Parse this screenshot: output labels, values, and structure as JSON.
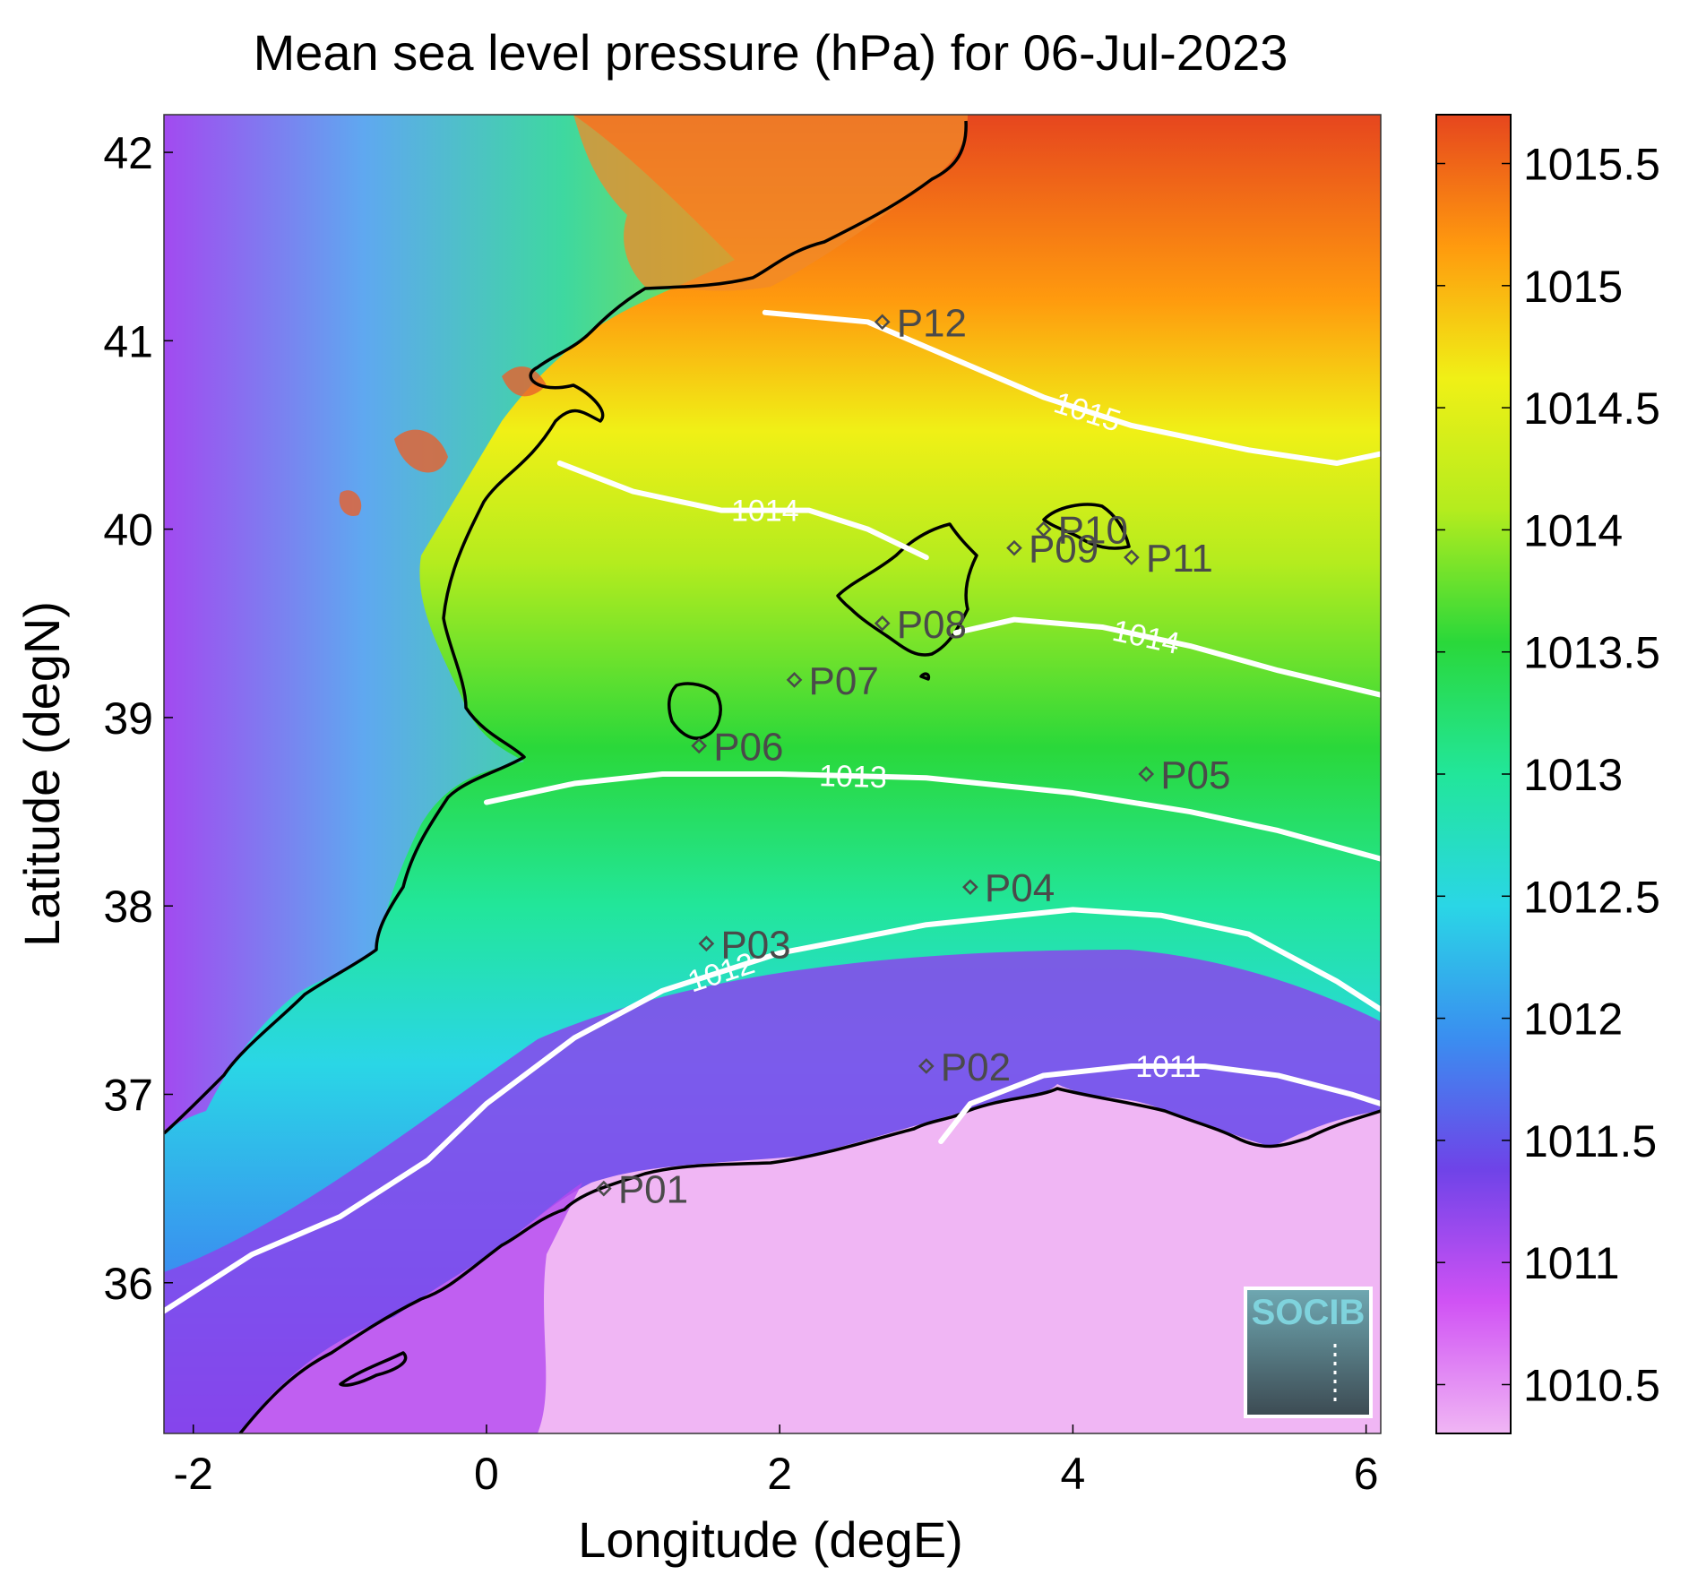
{
  "chart_data": {
    "type": "heatmap",
    "title": "Mean sea level pressure (hPa) for 06-Jul-2023",
    "xlabel": "Longitude (degE)",
    "ylabel": "Latitude (degN)",
    "xlim": [
      -2.2,
      6.1
    ],
    "ylim": [
      35.2,
      42.2
    ],
    "x_ticks": [
      -2,
      0,
      2,
      4,
      6
    ],
    "y_ticks": [
      36,
      37,
      38,
      39,
      40,
      41,
      42
    ],
    "colorbar": {
      "range": [
        1010.3,
        1015.7
      ],
      "ticks": [
        1010.5,
        1011,
        1011.5,
        1012,
        1012.5,
        1013,
        1013.5,
        1014,
        1014.5,
        1015,
        1015.5
      ],
      "colors": [
        "#f0b6f4",
        "#d052f4",
        "#6f43e8",
        "#3a8ef0",
        "#2ad6e6",
        "#22e69a",
        "#2ad83a",
        "#b4ec1e",
        "#f0f016",
        "#ff9a0e",
        "#e6461e"
      ]
    },
    "contours": [
      {
        "level": "1011",
        "label": "1011",
        "points": [
          [
            3.1,
            36.75
          ],
          [
            3.3,
            36.95
          ],
          [
            3.8,
            37.1
          ],
          [
            4.4,
            37.15
          ],
          [
            4.9,
            37.15
          ],
          [
            5.4,
            37.1
          ],
          [
            5.9,
            37.0
          ],
          [
            6.1,
            36.95
          ]
        ]
      },
      {
        "level": "1012",
        "label": "1012",
        "points": [
          [
            -2.2,
            35.85
          ],
          [
            -1.6,
            36.15
          ],
          [
            -1.0,
            36.35
          ],
          [
            -0.4,
            36.65
          ],
          [
            0.0,
            36.95
          ],
          [
            0.6,
            37.3
          ],
          [
            1.2,
            37.55
          ],
          [
            2.0,
            37.75
          ],
          [
            3.0,
            37.9
          ],
          [
            4.0,
            37.98
          ],
          [
            4.6,
            37.95
          ],
          [
            5.2,
            37.85
          ],
          [
            5.8,
            37.6
          ],
          [
            6.1,
            37.45
          ]
        ]
      },
      {
        "level": "1013",
        "label": "1013",
        "points": [
          [
            0.0,
            38.55
          ],
          [
            0.6,
            38.65
          ],
          [
            1.2,
            38.7
          ],
          [
            2.0,
            38.7
          ],
          [
            3.0,
            38.68
          ],
          [
            4.0,
            38.6
          ],
          [
            4.8,
            38.5
          ],
          [
            5.4,
            38.4
          ],
          [
            6.1,
            38.25
          ]
        ]
      },
      {
        "level": "1014",
        "label": "1014",
        "points": [
          [
            0.5,
            40.35
          ],
          [
            1.0,
            40.2
          ],
          [
            1.6,
            40.1
          ],
          [
            2.2,
            40.1
          ],
          [
            2.6,
            40.0
          ],
          [
            3.0,
            39.85
          ]
        ]
      },
      {
        "level": "1014",
        "label": "1014",
        "points": [
          [
            3.2,
            39.45
          ],
          [
            3.6,
            39.52
          ],
          [
            4.2,
            39.48
          ],
          [
            4.8,
            39.38
          ],
          [
            5.4,
            39.25
          ],
          [
            6.1,
            39.12
          ]
        ]
      },
      {
        "level": "1015",
        "label": "1015",
        "points": [
          [
            1.9,
            41.15
          ],
          [
            2.6,
            41.1
          ],
          [
            3.2,
            40.9
          ],
          [
            3.8,
            40.7
          ],
          [
            4.4,
            40.55
          ],
          [
            5.2,
            40.42
          ],
          [
            5.8,
            40.35
          ],
          [
            6.1,
            40.4
          ]
        ]
      }
    ],
    "stations": [
      {
        "id": "P01",
        "lon": 0.8,
        "lat": 36.5
      },
      {
        "id": "P02",
        "lon": 3.0,
        "lat": 37.15
      },
      {
        "id": "P03",
        "lon": 1.5,
        "lat": 37.8
      },
      {
        "id": "P04",
        "lon": 3.3,
        "lat": 38.1
      },
      {
        "id": "P05",
        "lon": 4.5,
        "lat": 38.7
      },
      {
        "id": "P06",
        "lon": 1.45,
        "lat": 38.85
      },
      {
        "id": "P07",
        "lon": 2.1,
        "lat": 39.2
      },
      {
        "id": "P08",
        "lon": 2.7,
        "lat": 39.5
      },
      {
        "id": "P09",
        "lon": 3.6,
        "lat": 39.9
      },
      {
        "id": "P10",
        "lon": 3.8,
        "lat": 40.0
      },
      {
        "id": "P11",
        "lon": 4.4,
        "lat": 39.85
      },
      {
        "id": "P12",
        "lon": 2.7,
        "lat": 41.1
      }
    ]
  },
  "logo": {
    "text": "SOCIB"
  }
}
